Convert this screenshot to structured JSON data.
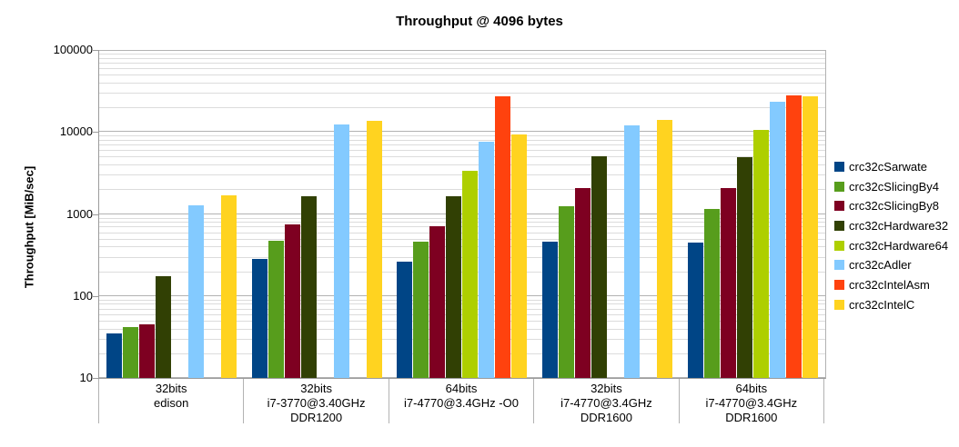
{
  "title": "Throughput @ 4096 bytes",
  "chart_data": {
    "type": "bar",
    "scale": "log",
    "title": "Throughput @ 4096 bytes",
    "xlabel": "",
    "ylabel": "Throughput [MiB/sec]",
    "ylim": [
      10,
      100000
    ],
    "yticks": [
      "10",
      "100",
      "1000",
      "10000",
      "100000"
    ],
    "grid": "horizontal major + log minor",
    "legend_position": "right",
    "background": "#ffffff",
    "gridline_major_color": "#b2b2b2",
    "gridline_minor_color": "#dcdcdc",
    "axis_color": "#9b9b9b",
    "categories": [
      {
        "lines": [
          "32bits",
          "edison"
        ]
      },
      {
        "lines": [
          "32bits",
          "i7-3770@3.40GHz",
          "DDR1200"
        ]
      },
      {
        "lines": [
          "64bits",
          "i7-4770@3.4GHz -O0"
        ]
      },
      {
        "lines": [
          "32bits",
          "i7-4770@3.4GHz",
          "DDR1600"
        ]
      },
      {
        "lines": [
          "64bits",
          "i7-4770@3.4GHz",
          "DDR1600"
        ]
      }
    ],
    "series": [
      {
        "name": "crc32cSarwate",
        "color": "#004586",
        "values": [
          35,
          280,
          262,
          458,
          448
        ]
      },
      {
        "name": "crc32cSlicingBy4",
        "color": "#579d1c",
        "values": [
          42,
          470,
          459,
          1245,
          1150
        ]
      },
      {
        "name": "crc32cSlicingBy8",
        "color": "#7e0021",
        "values": [
          45,
          740,
          718,
          2090,
          2060
        ]
      },
      {
        "name": "crc32cHardware32",
        "color": "#314004",
        "values": [
          176,
          1660,
          1665,
          5090,
          4930
        ]
      },
      {
        "name": "crc32cHardware64",
        "color": "#aecf00",
        "values": [
          null,
          null,
          3320,
          null,
          10660
        ]
      },
      {
        "name": "crc32cAdler",
        "color": "#83caff",
        "values": [
          1290,
          12230,
          7670,
          12030,
          23320
        ]
      },
      {
        "name": "crc32cIntelAsm",
        "color": "#ff420e",
        "values": [
          null,
          null,
          27120,
          null,
          27850
        ]
      },
      {
        "name": "crc32cIntelC",
        "color": "#ffd320",
        "values": [
          1675,
          13770,
          9380,
          14080,
          27350
        ]
      }
    ]
  }
}
